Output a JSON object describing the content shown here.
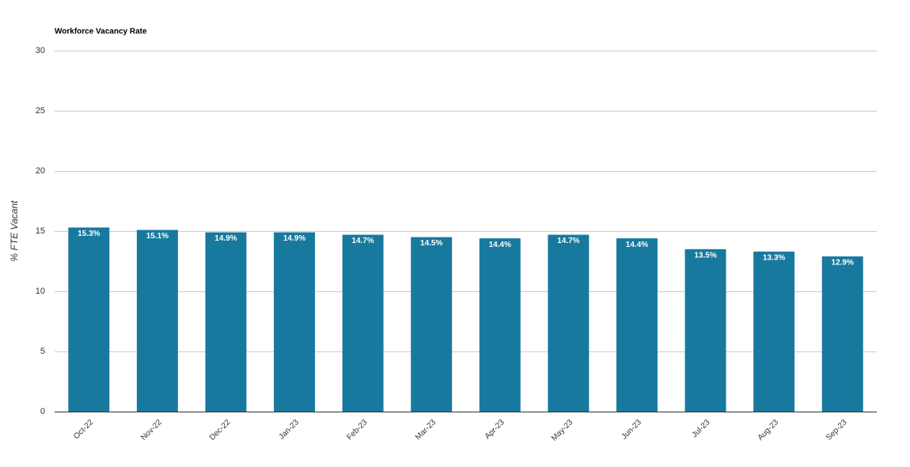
{
  "chart_data": {
    "type": "bar",
    "title": "Workforce Vacancy Rate",
    "y_axis_label": "% FTE Vacant",
    "categories": [
      "Oct-22",
      "Nov-22",
      "Dec-22",
      "Jan-23",
      "Feb-23",
      "Mar-23",
      "Apr-23",
      "May-23",
      "Jun-23",
      "Jul-23",
      "Aug-23",
      "Sep-23"
    ],
    "values": [
      15.3,
      15.1,
      14.9,
      14.9,
      14.7,
      14.5,
      14.4,
      14.7,
      14.4,
      13.5,
      13.3,
      12.9
    ],
    "value_labels": [
      "15.3%",
      "15.1%",
      "14.9%",
      "14.9%",
      "14.7%",
      "14.5%",
      "14.4%",
      "14.7%",
      "14.4%",
      "13.5%",
      "13.3%",
      "12.9%"
    ],
    "color": "#17799e",
    "ylim": [
      0,
      30
    ],
    "yticks": [
      0,
      5,
      10,
      15,
      20,
      25,
      30
    ],
    "grid": true
  }
}
